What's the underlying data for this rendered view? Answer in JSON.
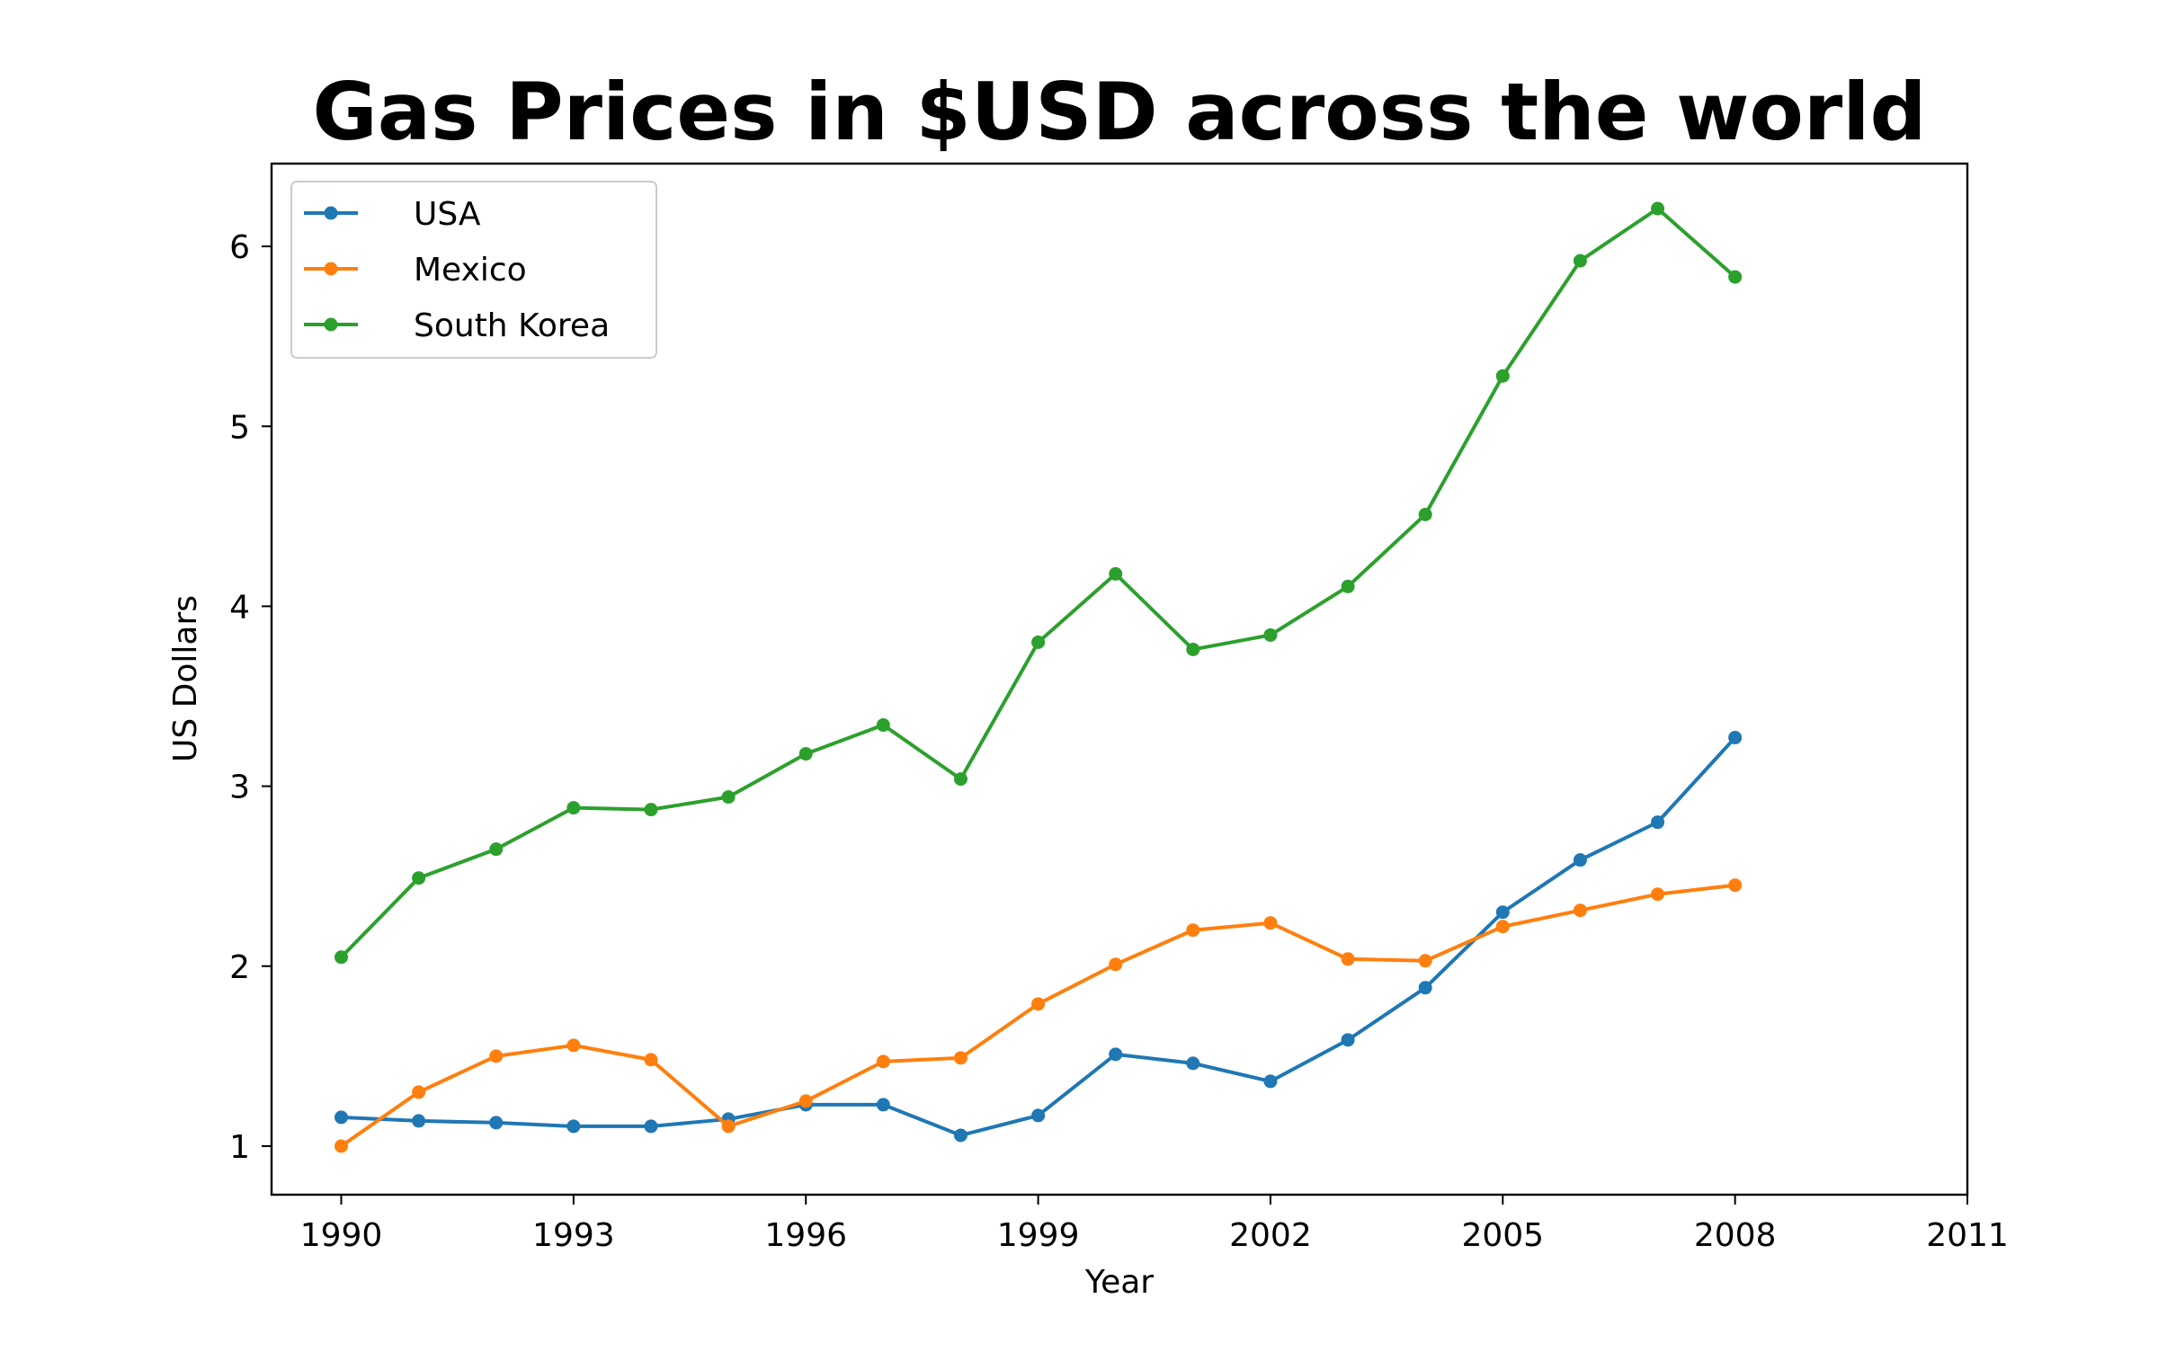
{
  "chart_data": {
    "type": "line",
    "title": "Gas Prices in $USD across the world",
    "xlabel": "Year",
    "ylabel": "US Dollars",
    "x": [
      1990,
      1991,
      1992,
      1993,
      1994,
      1995,
      1996,
      1997,
      1998,
      1999,
      2000,
      2001,
      2002,
      2003,
      2004,
      2005,
      2006,
      2007,
      2008
    ],
    "xlim": [
      1989.1,
      2011
    ],
    "ylim": [
      0.73,
      6.46
    ],
    "xticks": [
      1990,
      1993,
      1996,
      1999,
      2002,
      2005,
      2008,
      2011
    ],
    "yticks": [
      1,
      2,
      3,
      4,
      5,
      6
    ],
    "grid": false,
    "legend_position": "top-left",
    "marker": "circle",
    "series": [
      {
        "name": "USA",
        "color": "#1f77b4",
        "values": [
          1.16,
          1.14,
          1.13,
          1.11,
          1.11,
          1.15,
          1.23,
          1.23,
          1.06,
          1.17,
          1.51,
          1.46,
          1.36,
          1.59,
          1.88,
          2.3,
          2.59,
          2.8,
          3.27
        ]
      },
      {
        "name": "Mexico",
        "color": "#ff7f0e",
        "values": [
          1.0,
          1.3,
          1.5,
          1.56,
          1.48,
          1.11,
          1.25,
          1.47,
          1.49,
          1.79,
          2.01,
          2.2,
          2.24,
          2.04,
          2.03,
          2.22,
          2.31,
          2.4,
          2.45
        ]
      },
      {
        "name": "South Korea",
        "color": "#2ca02c",
        "values": [
          2.05,
          2.49,
          2.65,
          2.88,
          2.87,
          2.94,
          3.18,
          3.34,
          3.04,
          3.8,
          4.18,
          3.76,
          3.84,
          4.11,
          4.51,
          5.28,
          5.92,
          6.21,
          5.83
        ]
      }
    ]
  }
}
